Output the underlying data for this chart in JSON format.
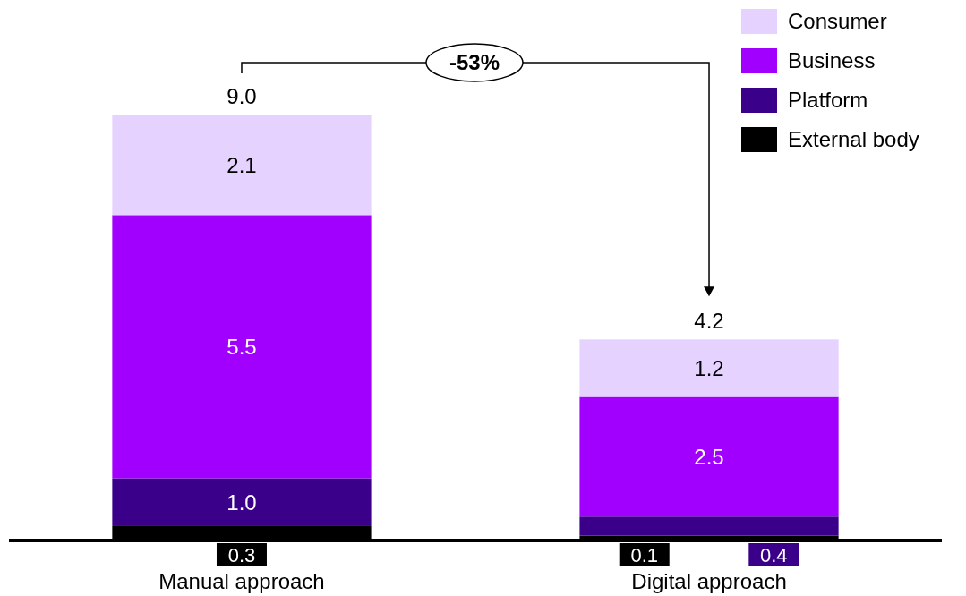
{
  "chart_data": {
    "type": "bar",
    "stacked": true,
    "categories": [
      "Manual approach",
      "Digital approach"
    ],
    "series": [
      {
        "name": "External body",
        "color": "#000000",
        "values": [
          0.3,
          0.1
        ],
        "value_labels": [
          "0.3",
          "0.1"
        ]
      },
      {
        "name": "Platform",
        "color": "#3a008a",
        "values": [
          1.0,
          0.4
        ],
        "value_labels": [
          "1.0",
          "0.4"
        ]
      },
      {
        "name": "Business",
        "color": "#a100ff",
        "values": [
          5.5,
          2.5
        ],
        "value_labels": [
          "5.5",
          "2.5"
        ]
      },
      {
        "name": "Consumer",
        "color": "#e6d2ff",
        "values": [
          2.1,
          1.2
        ],
        "value_labels": [
          "2.1",
          "1.2"
        ]
      }
    ],
    "totals": [
      "9.0",
      "4.2"
    ],
    "annotations": [
      "-53%"
    ],
    "legend": "top right"
  }
}
